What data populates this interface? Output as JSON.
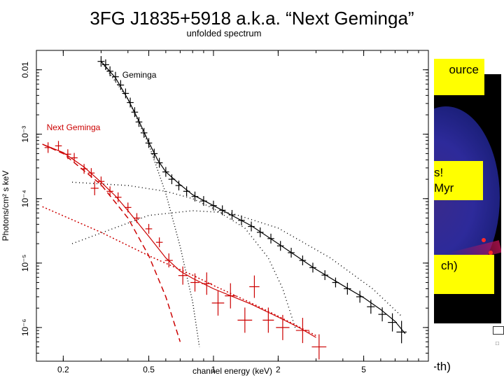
{
  "slide": {
    "title": "3FG J1835+5918 a.k.a. “Next Geminga”",
    "notes": {
      "a": "ource",
      "b1": "s!",
      "b2": "Myr",
      "c": "ch)",
      "d": "non-th)"
    }
  },
  "colors": {
    "geminga": "#000000",
    "next_geminga": "#cc0000",
    "highlight": "#ffff00"
  },
  "chart_data": {
    "type": "scatter",
    "title": "unfolded spectrum",
    "xlabel": "channel energy (keV)",
    "ylabel": "Photons/cm² s keV",
    "xscale": "log",
    "yscale": "log",
    "xlim": [
      0.15,
      10.0
    ],
    "ylim": [
      3e-07,
      0.02
    ],
    "xticks": [
      {
        "value": 0.2,
        "label": "0.2"
      },
      {
        "value": 0.5,
        "label": "0.5"
      },
      {
        "value": 1,
        "label": "1"
      },
      {
        "value": 2,
        "label": "2"
      },
      {
        "value": 5,
        "label": "5"
      }
    ],
    "yticks": [
      {
        "value": 0.01,
        "label": "0.01"
      },
      {
        "value": 0.001,
        "label": "10⁻³"
      },
      {
        "value": 0.0001,
        "label": "10⁻⁴"
      },
      {
        "value": 1e-05,
        "label": "10⁻⁵"
      },
      {
        "value": 1e-06,
        "label": "10⁻⁶"
      }
    ],
    "annotations": [
      {
        "text": "Geminga",
        "x": 0.36,
        "y": 0.0075,
        "series": "Geminga"
      },
      {
        "text": "Next Geminga",
        "x": 0.16,
        "y": 0.00115,
        "series": "Next Geminga"
      }
    ],
    "series": [
      {
        "name": "Geminga",
        "color": "#000000",
        "points": [
          [
            0.3,
            0.0135,
            0.00012
          ],
          [
            0.315,
            0.012,
            0.00012
          ],
          [
            0.33,
            0.0095,
            0.0001
          ],
          [
            0.35,
            0.0078,
            0.0001
          ],
          [
            0.37,
            0.0058,
            0.0001
          ],
          [
            0.39,
            0.0043,
            0.0001
          ],
          [
            0.41,
            0.0031,
            0.0001
          ],
          [
            0.43,
            0.0022,
            0.0001
          ],
          [
            0.45,
            0.00155,
            0.0001
          ],
          [
            0.475,
            0.00105,
            0.0001
          ],
          [
            0.5,
            0.00073,
            0.0001
          ],
          [
            0.53,
            0.0005,
            0.0001
          ],
          [
            0.56,
            0.00036,
            0.0001
          ],
          [
            0.6,
            0.00026,
            0.0001
          ],
          [
            0.64,
            0.0002,
            0.0001
          ],
          [
            0.69,
            0.00016,
            0.0001
          ],
          [
            0.75,
            0.00013,
            0.0001
          ],
          [
            0.82,
            0.000108,
            0.0001
          ],
          [
            0.9,
            9.2e-05,
            0.0001
          ],
          [
            1.0,
            7.8e-05,
            0.0001
          ],
          [
            1.1,
            6.6e-05,
            0.0001
          ],
          [
            1.22,
            5.6e-05,
            0.0001
          ],
          [
            1.35,
            4.6e-05,
            0.0001
          ],
          [
            1.5,
            3.7e-05,
            0.0001
          ],
          [
            1.65,
            3e-05,
            0.0001
          ],
          [
            1.85,
            2.4e-05,
            0.0001
          ],
          [
            2.05,
            1.85e-05,
            0.0001
          ],
          [
            2.3,
            1.45e-05,
            0.0001
          ],
          [
            2.6,
            1.1e-05,
            0.0001
          ],
          [
            2.9,
            8.5e-06,
            0.0001
          ],
          [
            3.3,
            6.5e-06,
            0.0001
          ],
          [
            3.7,
            5e-06,
            0.0001
          ],
          [
            4.2,
            4e-06,
            0.00015
          ],
          [
            4.8,
            3e-06,
            0.00015
          ],
          [
            5.4,
            2.1e-06,
            0.0002
          ],
          [
            6.1,
            1.6e-06,
            0.0002
          ],
          [
            6.8,
            1.2e-06,
            0.0003
          ],
          [
            7.5,
            8.5e-07,
            0.0004
          ]
        ],
        "model": [
          [
            0.3,
            0.0135
          ],
          [
            0.35,
            0.0075
          ],
          [
            0.4,
            0.0035
          ],
          [
            0.45,
            0.0016
          ],
          [
            0.5,
            0.00075
          ],
          [
            0.55,
            0.0004
          ],
          [
            0.6,
            0.00026
          ],
          [
            0.7,
            0.000165
          ],
          [
            0.8,
            0.000115
          ],
          [
            1.0,
            7.8e-05
          ],
          [
            1.5,
            3.8e-05
          ],
          [
            2.0,
            2e-05
          ],
          [
            3.0,
            8e-06
          ],
          [
            4.0,
            4.5e-06
          ],
          [
            5.0,
            2.9e-06
          ],
          [
            6.0,
            1.9e-06
          ],
          [
            7.0,
            1.25e-06
          ],
          [
            7.8,
            8e-07
          ]
        ],
        "components": [
          [
            [
              0.3,
              0.0135
            ],
            [
              0.4,
              0.0035
            ],
            [
              0.5,
              0.0007
            ],
            [
              0.6,
              0.00012
            ],
            [
              0.7,
              1.8e-05
            ],
            [
              0.8,
              2.5e-06
            ],
            [
              0.86,
              5e-07
            ]
          ],
          [
            [
              0.22,
              0.00018
            ],
            [
              0.4,
              0.00016
            ],
            [
              0.6,
              0.00013
            ],
            [
              0.8,
              0.0001
            ],
            [
              1.0,
              7e-05
            ],
            [
              1.4,
              3.5e-05
            ],
            [
              1.8,
              1.2e-05
            ],
            [
              2.1,
              4e-06
            ],
            [
              2.4,
              1e-06
            ]
          ],
          [
            [
              0.22,
              2e-05
            ],
            [
              0.5,
              5.5e-05
            ],
            [
              0.8,
              6.5e-05
            ],
            [
              1.2,
              6e-05
            ],
            [
              2.0,
              3.5e-05
            ],
            [
              3.5,
              1.2e-05
            ],
            [
              5.5,
              4e-06
            ],
            [
              7.5,
              1.5e-06
            ]
          ]
        ]
      },
      {
        "name": "Next Geminga",
        "color": "#cc0000",
        "points": [
          [
            0.17,
            0.00062,
            0.00012
          ],
          [
            0.19,
            0.00066,
            0.0001
          ],
          [
            0.21,
            0.00049,
            0.0001
          ],
          [
            0.225,
            0.00043,
            0.0001
          ],
          [
            0.25,
            0.00029,
            0.0001
          ],
          [
            0.27,
            0.00025,
            0.0001
          ],
          [
            0.28,
            0.000145,
            0.0002
          ],
          [
            0.3,
            0.000185,
            0.0001
          ],
          [
            0.33,
            0.00013,
            0.0001
          ],
          [
            0.36,
            0.000105,
            0.0001
          ],
          [
            0.4,
            7.3e-05,
            0.0001
          ],
          [
            0.44,
            5e-05,
            0.0001
          ],
          [
            0.5,
            3.4e-05,
            0.0001
          ],
          [
            0.56,
            2.1e-05,
            0.0001
          ],
          [
            0.62,
            1.1e-05,
            0.0002
          ],
          [
            0.72,
            6.4e-06,
            0.0003
          ],
          [
            0.82,
            5e-06,
            0.0003
          ],
          [
            0.93,
            4.8e-06,
            0.0004
          ],
          [
            1.05,
            2.4e-06,
            0.0006
          ],
          [
            1.2,
            3.1e-06,
            0.0005
          ],
          [
            1.4,
            1.3e-06,
            0.0008
          ],
          [
            1.55,
            4.3e-06,
            0.0004
          ],
          [
            1.8,
            1.3e-06,
            0.0005
          ],
          [
            2.1,
            1e-06,
            0.0007
          ],
          [
            2.6,
            9e-07,
            0.0007
          ],
          [
            3.1,
            5e-07,
            0.0008
          ]
        ],
        "model": [
          [
            0.16,
            0.0007
          ],
          [
            0.2,
            0.00052
          ],
          [
            0.25,
            0.00031
          ],
          [
            0.3,
            0.00018
          ],
          [
            0.35,
            0.00011
          ],
          [
            0.4,
            6.5e-05
          ],
          [
            0.45,
            4e-05
          ],
          [
            0.5,
            2.6e-05
          ],
          [
            0.6,
            1.2e-05
          ],
          [
            0.7,
            7.5e-06
          ],
          [
            0.8,
            5.8e-06
          ],
          [
            1.0,
            4e-06
          ],
          [
            1.5,
            2.3e-06
          ],
          [
            2.0,
            1.45e-06
          ],
          [
            2.5,
            1e-06
          ],
          [
            3.0,
            7e-07
          ]
        ],
        "components": [
          [
            [
              0.16,
              0.0007
            ],
            [
              0.2,
              0.0005
            ],
            [
              0.3,
              0.000165
            ],
            [
              0.4,
              5e-05
            ],
            [
              0.5,
              1.3e-05
            ],
            [
              0.6,
              3e-06
            ],
            [
              0.7,
              6e-07
            ]
          ],
          [
            [
              0.16,
              7.5e-05
            ],
            [
              0.3,
              3e-05
            ],
            [
              0.5,
              1.3e-05
            ],
            [
              0.8,
              6.5e-06
            ],
            [
              1.0,
              4.5e-06
            ],
            [
              1.5,
              2.4e-06
            ],
            [
              2.0,
              1.5e-06
            ],
            [
              3.0,
              7.5e-07
            ]
          ]
        ]
      }
    ]
  }
}
